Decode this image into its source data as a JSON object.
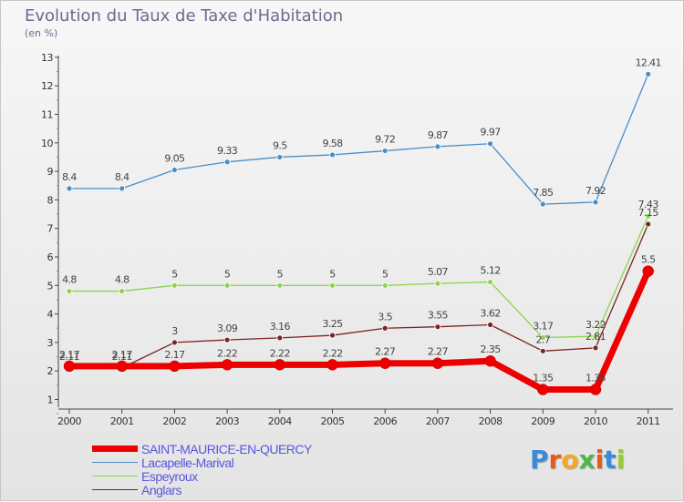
{
  "header": {
    "title": "Evolution du Taux de Taxe d'Habitation",
    "subtitle": "(en %)"
  },
  "logo": {
    "letters": [
      {
        "char": "P",
        "color": "#3a8ad8"
      },
      {
        "char": "r",
        "color": "#e85a1a"
      },
      {
        "char": "o",
        "color": "#f5a623"
      },
      {
        "char": "x",
        "color": "#4cb847"
      },
      {
        "char": "i",
        "color": "#e85a1a"
      },
      {
        "char": "t",
        "color": "#3a8ad8"
      },
      {
        "char": "i",
        "color": "#9acd32"
      }
    ]
  },
  "chart_data": {
    "type": "line",
    "title": "Evolution du Taux de Taxe d'Habitation",
    "subtitle": "(en %)",
    "categories": [
      "2000",
      "2001",
      "2002",
      "2003",
      "2004",
      "2005",
      "2006",
      "2007",
      "2008",
      "2009",
      "2010",
      "2011"
    ],
    "ylim": [
      1,
      13
    ],
    "yticks": [
      "1",
      "2",
      "3",
      "4",
      "5",
      "6",
      "7",
      "8",
      "9",
      "10",
      "11",
      "12",
      "13"
    ],
    "grid": false,
    "legend_position": "bottom-left",
    "series": [
      {
        "name": "SAINT-MAURICE-EN-QUERCY",
        "color": "#ee0000",
        "values": [
          2.17,
          2.17,
          2.17,
          2.22,
          2.22,
          2.22,
          2.27,
          2.27,
          2.35,
          1.35,
          1.35,
          5.5
        ],
        "labels": [
          "2.17",
          "2.17",
          "2.17",
          "2.22",
          "2.22",
          "2.22",
          "2.27",
          "2.27",
          "2.35",
          "1.35",
          "1.35",
          "5.5"
        ]
      },
      {
        "name": "Lacapelle-Marival",
        "color": "#4a8ec6",
        "values": [
          8.4,
          8.4,
          9.05,
          9.33,
          9.5,
          9.58,
          9.72,
          9.87,
          9.97,
          7.85,
          7.92,
          12.41
        ],
        "labels": [
          "8.4",
          "8.4",
          "9.05",
          "9.33",
          "9.5",
          "9.58",
          "9.72",
          "9.87",
          "9.97",
          "7.85",
          "7.92",
          "12.41"
        ]
      },
      {
        "name": "Espeyroux",
        "color": "#8cd44c",
        "values": [
          4.8,
          4.8,
          5,
          5,
          5,
          5,
          5,
          5.07,
          5.12,
          3.17,
          3.22,
          7.43
        ],
        "labels": [
          "4.8",
          "4.8",
          "5",
          "5",
          "5",
          "5",
          "5",
          "5.07",
          "5.12",
          "3.17",
          "3.22",
          "7.43"
        ]
      },
      {
        "name": "Anglars",
        "color": "#7a2424",
        "values": [
          2.11,
          2.11,
          3,
          3.09,
          3.16,
          3.25,
          3.5,
          3.55,
          3.62,
          2.7,
          2.81,
          7.15
        ],
        "labels": [
          "2.11",
          "2.11",
          "3",
          "3.09",
          "3.16",
          "3.25",
          "3.5",
          "3.55",
          "3.62",
          "2.7",
          "2.81",
          "7.15"
        ]
      }
    ]
  }
}
